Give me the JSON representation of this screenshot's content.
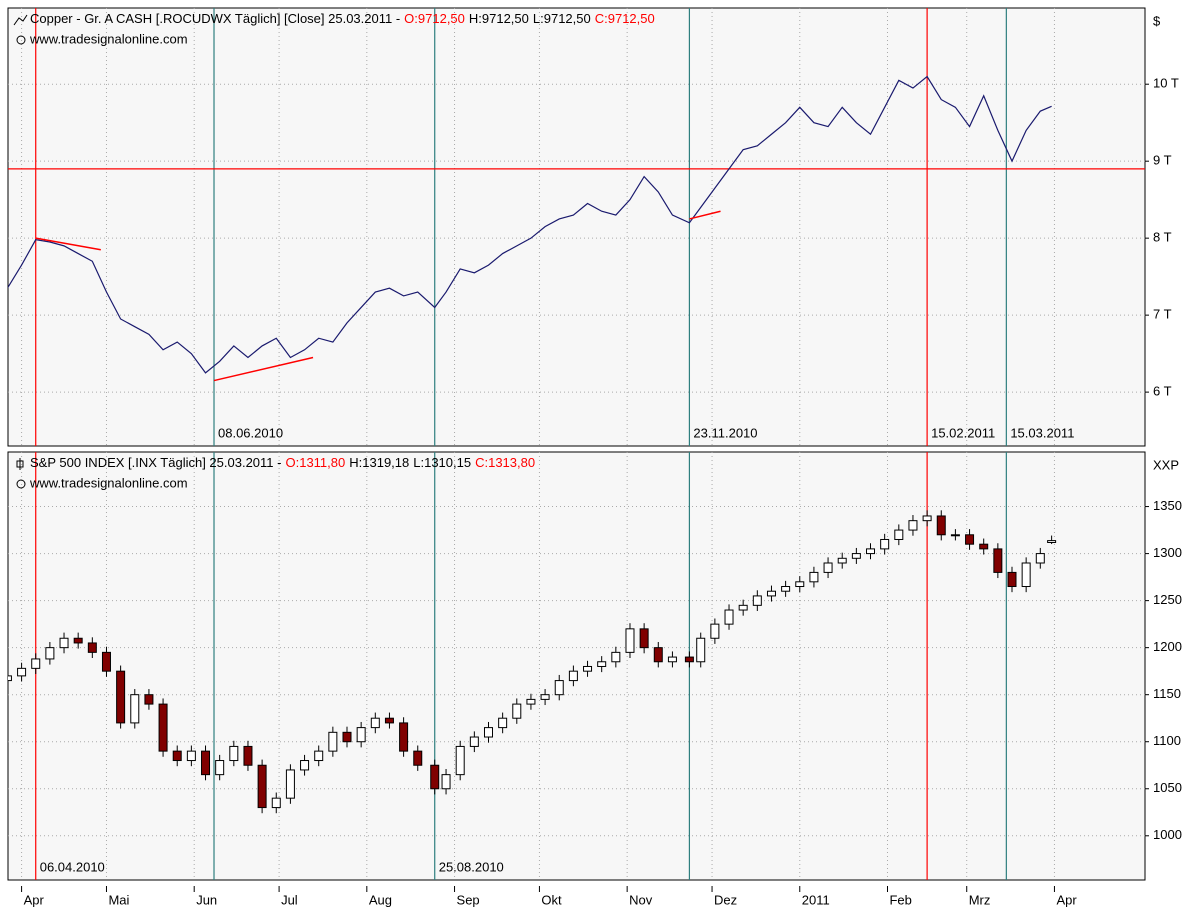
{
  "xaxis": {
    "xlim": [
      -4.8,
      397
    ],
    "xticks": [
      {
        "value": 0,
        "label": "Apr"
      },
      {
        "value": 30,
        "label": "Mai"
      },
      {
        "value": 61,
        "label": "Jun"
      },
      {
        "value": 91,
        "label": "Jul"
      },
      {
        "value": 122,
        "label": "Aug"
      },
      {
        "value": 153,
        "label": "Sep"
      },
      {
        "value": 183,
        "label": "Okt"
      },
      {
        "value": 214,
        "label": "Nov"
      },
      {
        "value": 244,
        "label": "Dez"
      },
      {
        "value": 275,
        "label": "2011"
      },
      {
        "value": 306,
        "label": "Feb"
      },
      {
        "value": 334,
        "label": "Mrz"
      },
      {
        "value": 365,
        "label": "Apr"
      }
    ]
  },
  "markers": [
    {
      "day": 5,
      "label": "06.04.2010",
      "color": "#ff0000",
      "panel": 1
    },
    {
      "day": 68,
      "label": "08.06.2010",
      "color": "#2f7f7f",
      "panel": 0
    },
    {
      "day": 146,
      "label": "25.08.2010",
      "color": "#2f7f7f",
      "panel": 1
    },
    {
      "day": 236,
      "label": "23.11.2010",
      "color": "#2f7f7f",
      "panel": 0
    },
    {
      "day": 320,
      "label": "15.02.2011",
      "color": "#ff0000",
      "panel": 0
    },
    {
      "day": 348,
      "label": "15.03.2011",
      "color": "#2f7f7f",
      "panel": 0
    }
  ],
  "chart_data": [
    {
      "type": "line",
      "title": "Copper - Gr. A CASH [.ROCUDWX  Täglich] [Close] 25.03.2011 -",
      "ohlc_labels": [
        "O:9712,50",
        "H:9712,50",
        "L:9712,50",
        "C:9712,50"
      ],
      "source": "www.tradesignalonline.com",
      "unit": "$",
      "color": "#1a1a6e",
      "ylim": [
        5300,
        10990
      ],
      "yticks": [
        {
          "value": 6000,
          "label": "6 T"
        },
        {
          "value": 7000,
          "label": "7 T"
        },
        {
          "value": 8000,
          "label": "8 T"
        },
        {
          "value": 9000,
          "label": "9 T"
        },
        {
          "value": 10000,
          "label": "10 T"
        }
      ],
      "hline": 8900,
      "trendlines": [
        {
          "x": [
            5,
            28
          ],
          "values": [
            8000,
            7850
          ]
        },
        {
          "x": [
            68,
            103
          ],
          "values": [
            6150,
            6450
          ]
        },
        {
          "x": [
            236,
            247
          ],
          "values": [
            8250,
            8350
          ]
        }
      ],
      "x": [
        -5,
        0,
        5,
        10,
        15,
        20,
        25,
        30,
        35,
        40,
        45,
        50,
        55,
        60,
        65,
        70,
        75,
        80,
        85,
        90,
        95,
        100,
        105,
        110,
        115,
        120,
        125,
        130,
        135,
        140,
        146,
        150,
        155,
        160,
        165,
        170,
        175,
        180,
        185,
        190,
        195,
        200,
        205,
        210,
        215,
        220,
        225,
        230,
        236,
        240,
        245,
        250,
        255,
        260,
        265,
        270,
        275,
        280,
        285,
        290,
        295,
        300,
        305,
        310,
        315,
        320,
        325,
        330,
        335,
        340,
        345,
        350,
        355,
        360,
        364
      ],
      "values": [
        7350,
        7650,
        7980,
        7950,
        7900,
        7800,
        7700,
        7300,
        6950,
        6850,
        6750,
        6550,
        6650,
        6500,
        6250,
        6400,
        6600,
        6450,
        6600,
        6700,
        6450,
        6550,
        6700,
        6650,
        6900,
        7100,
        7300,
        7350,
        7250,
        7300,
        7100,
        7300,
        7600,
        7550,
        7650,
        7800,
        7900,
        8000,
        8150,
        8250,
        8300,
        8450,
        8350,
        8300,
        8500,
        8800,
        8600,
        8300,
        8200,
        8400,
        8650,
        8900,
        9150,
        9200,
        9350,
        9500,
        9700,
        9500,
        9450,
        9700,
        9500,
        9350,
        9700,
        10050,
        9950,
        10100,
        9800,
        9700,
        9450,
        9850,
        9400,
        9000,
        9400,
        9650,
        9712.5
      ]
    },
    {
      "type": "candlestick",
      "title": "S&P 500 INDEX [.INX  Täglich] 25.03.2011 -",
      "ohlc_labels": [
        "O:1311,80",
        "H:1319,18",
        "L:1310,15",
        "C:1313,80"
      ],
      "source": "www.tradesignalonline.com",
      "unit": "XXP",
      "up_color": "#ffffff",
      "down_color": "#800000",
      "ylim": [
        953,
        1408
      ],
      "yticks": [
        1000,
        1050,
        1100,
        1150,
        1200,
        1250,
        1300,
        1350
      ],
      "x": [
        -5,
        0,
        5,
        10,
        15,
        20,
        25,
        30,
        35,
        40,
        45,
        50,
        55,
        60,
        65,
        70,
        75,
        80,
        85,
        90,
        95,
        100,
        105,
        110,
        115,
        120,
        125,
        130,
        135,
        140,
        146,
        150,
        155,
        160,
        165,
        170,
        175,
        180,
        185,
        190,
        195,
        200,
        205,
        210,
        215,
        220,
        225,
        230,
        236,
        240,
        245,
        250,
        255,
        260,
        265,
        270,
        275,
        280,
        285,
        290,
        295,
        300,
        305,
        310,
        315,
        320,
        325,
        330,
        335,
        340,
        345,
        350,
        355,
        360,
        364
      ],
      "opens": [
        1165,
        1170,
        1178,
        1188,
        1200,
        1210,
        1205,
        1195,
        1175,
        1120,
        1150,
        1140,
        1090,
        1080,
        1090,
        1065,
        1080,
        1095,
        1075,
        1030,
        1040,
        1070,
        1080,
        1090,
        1110,
        1100,
        1115,
        1125,
        1120,
        1090,
        1075,
        1050,
        1065,
        1095,
        1105,
        1115,
        1125,
        1140,
        1145,
        1150,
        1165,
        1175,
        1180,
        1185,
        1195,
        1220,
        1200,
        1185,
        1190,
        1185,
        1210,
        1225,
        1240,
        1245,
        1255,
        1260,
        1265,
        1270,
        1280,
        1290,
        1295,
        1300,
        1305,
        1315,
        1325,
        1335,
        1340,
        1320,
        1320,
        1310,
        1305,
        1280,
        1265,
        1290,
        1311.8
      ],
      "highs": [
        1176,
        1184,
        1194,
        1206,
        1216,
        1216,
        1211,
        1201,
        1181,
        1156,
        1156,
        1146,
        1096,
        1096,
        1096,
        1086,
        1101,
        1101,
        1081,
        1046,
        1076,
        1086,
        1096,
        1116,
        1116,
        1121,
        1131,
        1131,
        1126,
        1096,
        1081,
        1071,
        1101,
        1111,
        1121,
        1131,
        1146,
        1151,
        1156,
        1171,
        1181,
        1186,
        1191,
        1201,
        1226,
        1226,
        1206,
        1196,
        1196,
        1216,
        1231,
        1246,
        1251,
        1261,
        1266,
        1271,
        1276,
        1286,
        1296,
        1301,
        1306,
        1311,
        1321,
        1331,
        1341,
        1346,
        1346,
        1326,
        1326,
        1316,
        1311,
        1286,
        1296,
        1306,
        1319.18
      ],
      "lows": [
        1159,
        1164,
        1172,
        1182,
        1194,
        1199,
        1189,
        1169,
        1114,
        1114,
        1134,
        1084,
        1074,
        1074,
        1059,
        1059,
        1074,
        1069,
        1024,
        1024,
        1034,
        1064,
        1074,
        1084,
        1094,
        1094,
        1109,
        1114,
        1084,
        1069,
        1044,
        1044,
        1059,
        1089,
        1099,
        1109,
        1119,
        1134,
        1139,
        1144,
        1159,
        1169,
        1174,
        1179,
        1189,
        1194,
        1179,
        1179,
        1179,
        1179,
        1204,
        1219,
        1234,
        1239,
        1249,
        1254,
        1259,
        1264,
        1274,
        1284,
        1289,
        1294,
        1299,
        1309,
        1319,
        1329,
        1314,
        1314,
        1304,
        1299,
        1274,
        1259,
        1259,
        1284,
        1310.15
      ],
      "closes": [
        1170,
        1178,
        1188,
        1200,
        1210,
        1205,
        1195,
        1175,
        1120,
        1150,
        1140,
        1090,
        1080,
        1090,
        1065,
        1080,
        1095,
        1075,
        1030,
        1040,
        1070,
        1080,
        1090,
        1110,
        1100,
        1115,
        1125,
        1120,
        1090,
        1075,
        1050,
        1065,
        1095,
        1105,
        1115,
        1125,
        1140,
        1145,
        1150,
        1165,
        1175,
        1180,
        1185,
        1195,
        1220,
        1200,
        1185,
        1190,
        1185,
        1210,
        1225,
        1240,
        1245,
        1255,
        1260,
        1265,
        1270,
        1280,
        1290,
        1295,
        1300,
        1305,
        1315,
        1325,
        1335,
        1340,
        1320,
        1320,
        1310,
        1305,
        1280,
        1265,
        1290,
        1300,
        1313.8
      ]
    }
  ]
}
